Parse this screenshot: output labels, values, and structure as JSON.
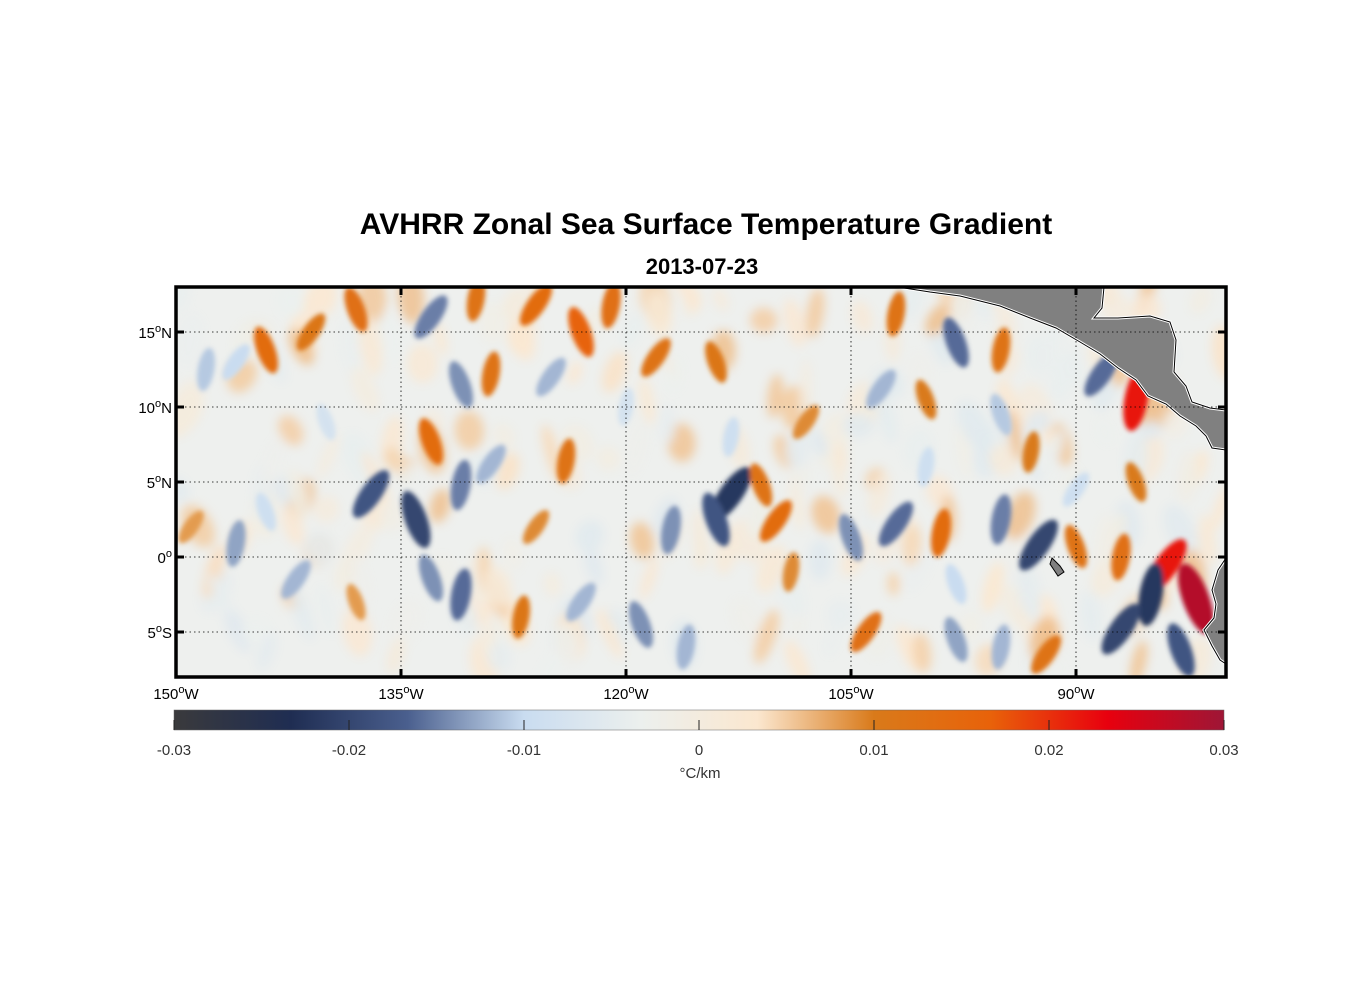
{
  "title": "AVHRR Zonal Sea Surface Temperature Gradient",
  "subtitle": "2013-07-23",
  "map": {
    "lon_range": [
      -150,
      -80
    ],
    "lat_range": [
      -8,
      18
    ],
    "grid": true,
    "land_color": "#808080",
    "lon_ticks": [
      {
        "value": -150,
        "deg": "150",
        "suffix": "W"
      },
      {
        "value": -135,
        "deg": "135",
        "suffix": "W"
      },
      {
        "value": -120,
        "deg": "120",
        "suffix": "W"
      },
      {
        "value": -105,
        "deg": "105",
        "suffix": "W"
      },
      {
        "value": -90,
        "deg": "90",
        "suffix": "W"
      }
    ],
    "lat_ticks": [
      {
        "value": 15,
        "deg": "15",
        "suffix": "N"
      },
      {
        "value": 10,
        "deg": "10",
        "suffix": "N"
      },
      {
        "value": 5,
        "deg": "5",
        "suffix": "N"
      },
      {
        "value": 0,
        "deg": "0",
        "suffix": ""
      },
      {
        "value": -5,
        "deg": "5",
        "suffix": "S"
      }
    ]
  },
  "colorbar": {
    "range": [
      -0.03,
      0.03
    ],
    "unit_label": "°C/km",
    "tick_values": [
      -0.03,
      -0.02,
      -0.01,
      0,
      0.01,
      0.02,
      0.03
    ],
    "tick_labels": [
      "-0.03",
      "-0.02",
      "-0.01",
      "0",
      "0.01",
      "0.02",
      "0.03"
    ],
    "colormap": [
      "#3a3a3c",
      "#1f2d52",
      "#4a5f8e",
      "#c9dcf0",
      "#ecf0ee",
      "#fbe7cf",
      "#d97a1a",
      "#e8620a",
      "#e8000e",
      "#9e1636"
    ]
  },
  "features": [
    {
      "lon": -137,
      "lat": 4.2,
      "v": -0.018
    },
    {
      "lon": -134,
      "lat": 2.5,
      "v": -0.02
    },
    {
      "lon": -131,
      "lat": 4.8,
      "v": -0.015
    },
    {
      "lon": -129,
      "lat": 6.2,
      "v": -0.012
    },
    {
      "lon": -133,
      "lat": -1.4,
      "v": -0.014
    },
    {
      "lon": -131,
      "lat": -2.5,
      "v": -0.016
    },
    {
      "lon": -113,
      "lat": 4.2,
      "v": -0.022
    },
    {
      "lon": -114,
      "lat": 2.5,
      "v": -0.018
    },
    {
      "lon": -117,
      "lat": 1.8,
      "v": -0.014
    },
    {
      "lon": -110,
      "lat": 2.4,
      "v": 0.014
    },
    {
      "lon": -111,
      "lat": 4.8,
      "v": 0.012
    },
    {
      "lon": -99,
      "lat": 1.6,
      "v": 0.014
    },
    {
      "lon": -102,
      "lat": 2.2,
      "v": -0.016
    },
    {
      "lon": -105,
      "lat": 1.3,
      "v": -0.014
    },
    {
      "lon": -95,
      "lat": 2.5,
      "v": -0.015
    },
    {
      "lon": -92.5,
      "lat": 0.8,
      "v": -0.02
    },
    {
      "lon": -90,
      "lat": 0.7,
      "v": 0.012
    },
    {
      "lon": -87,
      "lat": 0.0,
      "v": 0.013
    },
    {
      "lon": -84,
      "lat": -0.6,
      "v": 0.022
    },
    {
      "lon": -82,
      "lat": -2.8,
      "v": 0.028
    },
    {
      "lon": -85,
      "lat": -2.5,
      "v": -0.022
    },
    {
      "lon": -87,
      "lat": -4.8,
      "v": -0.02
    },
    {
      "lon": -83,
      "lat": -6.2,
      "v": -0.018
    },
    {
      "lon": -86,
      "lat": 10.5,
      "v": 0.022
    },
    {
      "lon": -88.3,
      "lat": 12.2,
      "v": -0.016
    },
    {
      "lon": -98,
      "lat": 14.3,
      "v": -0.016
    },
    {
      "lon": -95,
      "lat": 13.8,
      "v": 0.012
    },
    {
      "lon": -141,
      "lat": 15.0,
      "v": 0.011
    },
    {
      "lon": -138,
      "lat": 16.5,
      "v": 0.013
    },
    {
      "lon": -130,
      "lat": 17.2,
      "v": 0.012
    },
    {
      "lon": -126,
      "lat": 16.8,
      "v": 0.014
    },
    {
      "lon": -123,
      "lat": 15.0,
      "v": 0.016
    },
    {
      "lon": -121,
      "lat": 16.8,
      "v": 0.013
    },
    {
      "lon": -133,
      "lat": 16.0,
      "v": -0.015
    },
    {
      "lon": -131,
      "lat": 11.5,
      "v": -0.014
    },
    {
      "lon": -129,
      "lat": 12.2,
      "v": 0.012
    },
    {
      "lon": -125,
      "lat": 12.0,
      "v": -0.012
    },
    {
      "lon": -133,
      "lat": 7.7,
      "v": 0.014
    },
    {
      "lon": -124,
      "lat": 6.4,
      "v": 0.012
    },
    {
      "lon": -118,
      "lat": 13.3,
      "v": 0.012
    },
    {
      "lon": -114,
      "lat": 13.0,
      "v": 0.011
    },
    {
      "lon": -102,
      "lat": 16.2,
      "v": 0.012
    },
    {
      "lon": -103,
      "lat": 11.2,
      "v": -0.012
    },
    {
      "lon": -100,
      "lat": 10.5,
      "v": 0.01
    },
    {
      "lon": -148,
      "lat": 12.5,
      "v": -0.011
    },
    {
      "lon": -146,
      "lat": 13.0,
      "v": -0.01
    },
    {
      "lon": -144,
      "lat": 13.8,
      "v": 0.014
    },
    {
      "lon": -146,
      "lat": 0.9,
      "v": -0.013
    },
    {
      "lon": -142,
      "lat": -1.5,
      "v": -0.012
    },
    {
      "lon": -144,
      "lat": 3.0,
      "v": -0.009
    },
    {
      "lon": -127,
      "lat": -4.0,
      "v": 0.011
    },
    {
      "lon": -123,
      "lat": -3.0,
      "v": -0.012
    },
    {
      "lon": -119,
      "lat": -4.5,
      "v": -0.014
    },
    {
      "lon": -116,
      "lat": -6.0,
      "v": -0.012
    },
    {
      "lon": -104,
      "lat": -5.0,
      "v": 0.013
    },
    {
      "lon": -98,
      "lat": -5.5,
      "v": -0.013
    },
    {
      "lon": -95,
      "lat": -6.0,
      "v": -0.012
    },
    {
      "lon": -92,
      "lat": -6.5,
      "v": 0.012
    },
    {
      "lon": -98,
      "lat": -1.8,
      "v": -0.01
    },
    {
      "lon": -109,
      "lat": -1.0,
      "v": 0.009
    },
    {
      "lon": -149,
      "lat": 2.0,
      "v": 0.008
    },
    {
      "lon": -140,
      "lat": 9.0,
      "v": -0.008
    },
    {
      "lon": -113,
      "lat": 8.0,
      "v": -0.009
    },
    {
      "lon": -108,
      "lat": 9.0,
      "v": 0.009
    },
    {
      "lon": -95,
      "lat": 9.5,
      "v": -0.011
    },
    {
      "lon": -93,
      "lat": 7.0,
      "v": 0.01
    },
    {
      "lon": -90,
      "lat": 4.5,
      "v": -0.009
    },
    {
      "lon": -86,
      "lat": 5.0,
      "v": 0.01
    },
    {
      "lon": -120,
      "lat": 10.0,
      "v": -0.008
    },
    {
      "lon": -126,
      "lat": 2.0,
      "v": 0.009
    },
    {
      "lon": -138,
      "lat": -3.0,
      "v": 0.008
    },
    {
      "lon": -100,
      "lat": 6.0,
      "v": -0.009
    }
  ]
}
